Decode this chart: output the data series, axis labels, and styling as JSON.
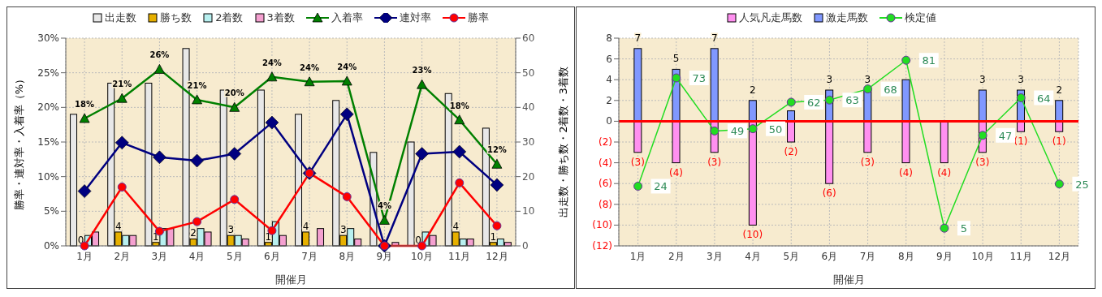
{
  "chart_data": [
    {
      "type": "bar",
      "categories": [
        "1月",
        "2月",
        "3月",
        "4月",
        "5月",
        "6月",
        "7月",
        "8月",
        "9月",
        "10月",
        "11月",
        "12月"
      ],
      "xlabel": "開催月",
      "ylabel": "勝率・連対率・入着率（%）",
      "y2label": "出走数・勝ち数・2着数・3着数",
      "ylim": [
        0,
        30
      ],
      "yticks": [
        {
          "value": 0,
          "label": "0%"
        },
        {
          "value": 5,
          "label": "5%"
        },
        {
          "value": 10,
          "label": "10%"
        },
        {
          "value": 15,
          "label": "15%"
        },
        {
          "value": 20,
          "label": "20%"
        },
        {
          "value": 25,
          "label": "25%"
        },
        {
          "value": 30,
          "label": "30%"
        }
      ],
      "y2lim": [
        0,
        60
      ],
      "y2ticks": [
        0,
        10,
        20,
        30,
        40,
        50,
        60
      ],
      "grid": true,
      "legend": "top",
      "series": [
        {
          "name": "出走数",
          "axis": "y2",
          "color": "#e8e8e8",
          "values": [
            38,
            47,
            47,
            57,
            45,
            45,
            38,
            42,
            27,
            30,
            44,
            34
          ]
        },
        {
          "name": "勝ち数",
          "axis": "y2",
          "color": "#e6b000",
          "values": [
            0,
            4,
            1,
            2,
            3,
            1,
            4,
            3,
            0,
            0,
            4,
            1
          ],
          "value_labels": [
            "0",
            "4",
            "1",
            "2",
            "3",
            "1",
            "4",
            "3",
            null,
            "0",
            "4",
            "1"
          ]
        },
        {
          "name": "2着数",
          "axis": "y2",
          "color": "#b8f0f0",
          "values": [
            3,
            3,
            5,
            5,
            3,
            7,
            0,
            5,
            0,
            4,
            2,
            2
          ]
        },
        {
          "name": "3着数",
          "axis": "y2",
          "color": "#f4a0d0",
          "values": [
            4,
            3,
            5,
            4,
            2,
            3,
            5,
            2,
            1,
            3,
            2,
            1
          ]
        },
        {
          "name": "入着率",
          "type": "line",
          "axis": "y",
          "color": "#008000",
          "marker": "triangle",
          "values": [
            18.4,
            21.3,
            25.5,
            21.1,
            20.0,
            24.4,
            23.7,
            23.8,
            3.7,
            23.3,
            18.2,
            11.8
          ],
          "value_labels": [
            "18%",
            "21%",
            "26%",
            "21%",
            "20%",
            "24%",
            "24%",
            "24%",
            "4%",
            "23%",
            "18%",
            "12%"
          ]
        },
        {
          "name": "連対率",
          "type": "line",
          "axis": "y",
          "color": "#000080",
          "marker": "diamond",
          "values": [
            7.9,
            14.9,
            12.8,
            12.3,
            13.3,
            17.8,
            10.5,
            19.0,
            0,
            13.3,
            13.6,
            8.8
          ]
        },
        {
          "name": "勝率",
          "type": "line",
          "axis": "y",
          "color": "#ff0000",
          "marker": "circle",
          "values": [
            0,
            8.5,
            2.1,
            3.5,
            6.7,
            2.2,
            10.5,
            7.1,
            0,
            0,
            9.1,
            2.9
          ]
        }
      ]
    },
    {
      "type": "bar",
      "stacked": true,
      "categories": [
        "1月",
        "2月",
        "3月",
        "4月",
        "5月",
        "6月",
        "7月",
        "8月",
        "9月",
        "10月",
        "11月",
        "12月"
      ],
      "xlabel": "開催月",
      "ylim": [
        -12,
        8
      ],
      "yticks": [
        {
          "value": -12,
          "label": "(12)"
        },
        {
          "value": -10,
          "label": "(10)"
        },
        {
          "value": -8,
          "label": "(8)"
        },
        {
          "value": -6,
          "label": "(6)"
        },
        {
          "value": -4,
          "label": "(4)"
        },
        {
          "value": -2,
          "label": "(2)"
        },
        0,
        2,
        4,
        6,
        8
      ],
      "y2lim": [
        -3,
        91
      ],
      "grid": true,
      "legend": "top",
      "ref_lines": [
        {
          "axis": "y",
          "value": 0,
          "color": "#ff0000"
        }
      ],
      "series": [
        {
          "name": "人気凡走馬数",
          "axis": "y",
          "color": "#ff90f0",
          "values": [
            -3,
            -4,
            -3,
            -10,
            -2,
            -6,
            -3,
            -4,
            -4,
            -3,
            -1,
            -1
          ],
          "value_labels": [
            "(3)",
            "(4)",
            "(3)",
            "(10)",
            "(2)",
            "(6)",
            "(3)",
            "(4)",
            "(4)",
            "(3)",
            "(1)",
            "(1)"
          ]
        },
        {
          "name": "激走馬数",
          "axis": "y",
          "color": "#8098ff",
          "values": [
            7,
            5,
            7,
            2,
            1,
            3,
            3,
            4,
            0,
            3,
            3,
            2
          ],
          "value_labels": [
            "7",
            "5",
            "7",
            "2",
            null,
            "3",
            "3",
            null,
            null,
            "3",
            "3",
            "2"
          ]
        },
        {
          "name": "検定値",
          "type": "line",
          "axis": "y2",
          "color": "#22dd22",
          "marker": "circle",
          "values": [
            24,
            73,
            49,
            50,
            62,
            63,
            68,
            81,
            5,
            47,
            64,
            25
          ],
          "value_labels": [
            "24",
            "73",
            "49",
            "50",
            "62",
            "63",
            "68",
            "81",
            "5",
            "47",
            "64",
            "25"
          ]
        }
      ]
    }
  ]
}
